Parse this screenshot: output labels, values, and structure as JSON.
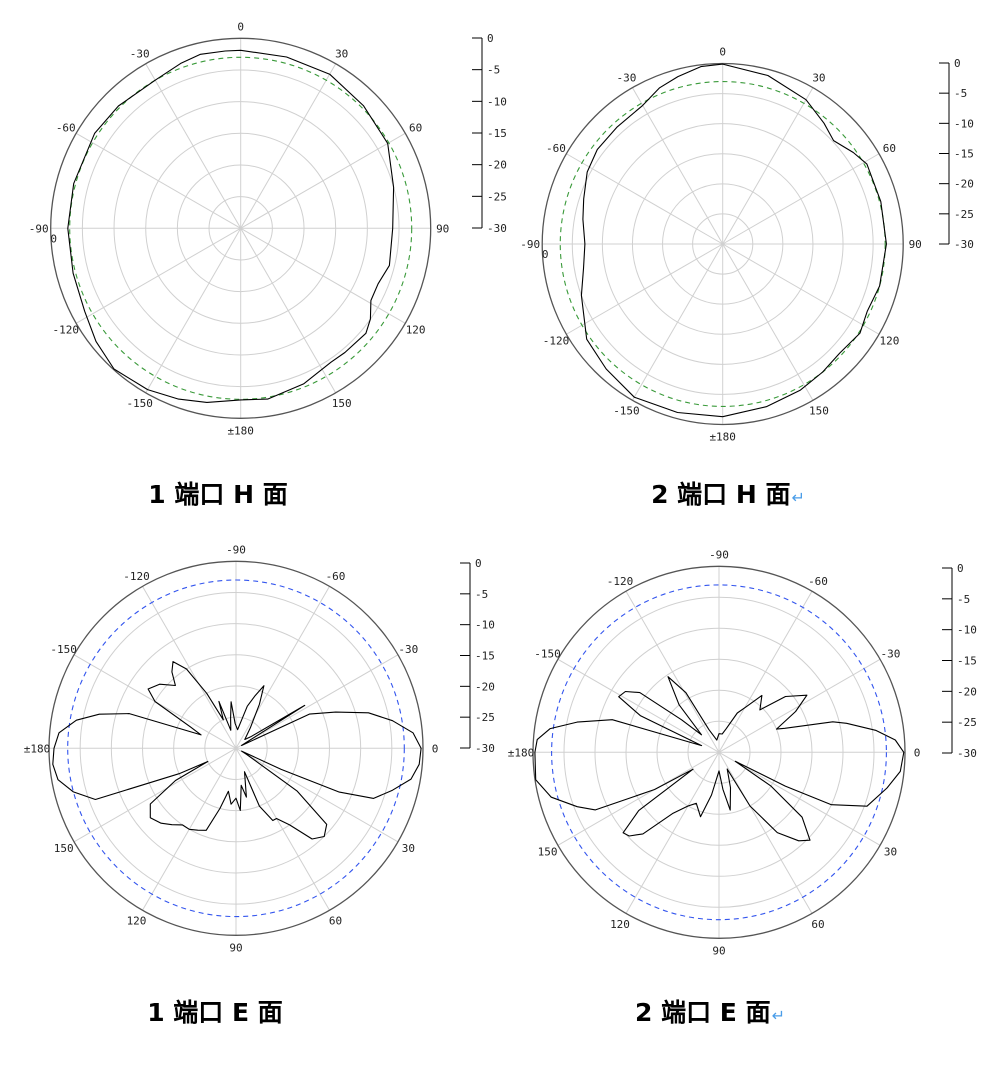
{
  "chart_data": [
    {
      "type": "polar-line",
      "title": "1 端口 H 面",
      "title_mark": "↵",
      "show_title_mark": false,
      "zero_direction": "top",
      "direction": "clockwise",
      "rlim": [
        -30,
        0
      ],
      "scale_ticks": [
        "0",
        "-5",
        "-10",
        "-15",
        "-20",
        "-25",
        "-30"
      ],
      "angle_ticks": [
        0,
        30,
        60,
        90,
        120,
        150,
        180,
        -150,
        -120,
        -90,
        -60,
        -30
      ],
      "angle_labels": [
        "0",
        "30",
        "60",
        "90",
        "120",
        "150",
        "±180",
        "-150",
        "-120",
        "-90",
        "-60",
        "-30"
      ],
      "extra_label": "0",
      "grid": true,
      "reference_circle": {
        "value": -3,
        "color": "#3a9a3a",
        "style": "dashed"
      },
      "line_color": "#000000",
      "points": [
        [
          0,
          -1.9
        ],
        [
          15,
          -2.0
        ],
        [
          30,
          -1.9
        ],
        [
          45,
          -2.6
        ],
        [
          60,
          -3.2
        ],
        [
          75,
          -5.0
        ],
        [
          90,
          -6.0
        ],
        [
          104,
          -5.8
        ],
        [
          112,
          -6.6
        ],
        [
          119,
          -6.5
        ],
        [
          125,
          -5.0
        ],
        [
          130,
          -4.2
        ],
        [
          140,
          -4.4
        ],
        [
          146,
          -4.5
        ],
        [
          158,
          -3.5
        ],
        [
          171,
          -2.7
        ],
        [
          180,
          -2.9
        ],
        [
          -169,
          -2.0
        ],
        [
          -160,
          -1.3
        ],
        [
          -150,
          -0.6
        ],
        [
          -138,
          -0.1
        ],
        [
          -128,
          -1.0
        ],
        [
          -118,
          -2.1
        ],
        [
          -105,
          -2.6
        ],
        [
          -90,
          -2.7
        ],
        [
          -75,
          -2.7
        ],
        [
          -57,
          -2.5
        ],
        [
          -45,
          -2.7
        ],
        [
          -30,
          -3.0
        ],
        [
          -20,
          -2.3
        ],
        [
          -13,
          -1.8
        ],
        [
          -5,
          -1.9
        ]
      ]
    },
    {
      "type": "polar-line",
      "title": "2 端口 H 面",
      "title_mark": "↵",
      "show_title_mark": true,
      "zero_direction": "top",
      "direction": "clockwise",
      "rlim": [
        -30,
        0
      ],
      "scale_ticks": [
        "0",
        "-5",
        "-10",
        "-15",
        "-20",
        "-25",
        "-30"
      ],
      "angle_ticks": [
        0,
        30,
        60,
        90,
        120,
        150,
        180,
        -150,
        -120,
        -90,
        -60,
        -30
      ],
      "angle_labels": [
        "0",
        "30",
        "60",
        "90",
        "120",
        "150",
        "±180",
        "-150",
        "-120",
        "-90",
        "-60",
        "-30"
      ],
      "extra_label": "0",
      "grid": true,
      "reference_circle": {
        "value": -3,
        "color": "#3a9a3a",
        "style": "dashed"
      },
      "line_color": "#000000",
      "points": [
        [
          0,
          -0.1
        ],
        [
          15,
          -1.0
        ],
        [
          30,
          -2.3
        ],
        [
          40,
          -3.8
        ],
        [
          47,
          -4.8
        ],
        [
          55,
          -3.5
        ],
        [
          61,
          -2.6
        ],
        [
          75,
          -2.8
        ],
        [
          90,
          -2.8
        ],
        [
          105,
          -3.0
        ],
        [
          115,
          -3.5
        ],
        [
          123,
          -2.8
        ],
        [
          133,
          -3.4
        ],
        [
          142,
          -3.0
        ],
        [
          152,
          -2.5
        ],
        [
          165,
          -2.0
        ],
        [
          180,
          -1.3
        ],
        [
          -165,
          -1.0
        ],
        [
          -150,
          -0.6
        ],
        [
          -137,
          -1.6
        ],
        [
          -125,
          -2.4
        ],
        [
          -110,
          -5.0
        ],
        [
          -100,
          -6.5
        ],
        [
          -90,
          -7.1
        ],
        [
          -80,
          -6.4
        ],
        [
          -72,
          -5.7
        ],
        [
          -62,
          -4.5
        ],
        [
          -53,
          -3.9
        ],
        [
          -42,
          -3.8
        ],
        [
          -30,
          -3.4
        ],
        [
          -22,
          -2.0
        ],
        [
          -15,
          -1.2
        ],
        [
          -7,
          -0.3
        ]
      ]
    },
    {
      "type": "polar-line",
      "title": "1 端口 E 面",
      "title_mark": "↵",
      "show_title_mark": false,
      "zero_direction": "right",
      "direction": "clockwise",
      "rlim": [
        -30,
        0
      ],
      "scale_ticks": [
        "0",
        "-5",
        "-10",
        "-15",
        "-20",
        "-25",
        "-30"
      ],
      "angle_ticks": [
        0,
        30,
        60,
        90,
        120,
        150,
        180,
        -150,
        -120,
        -90,
        -60,
        -30
      ],
      "angle_labels": [
        "0",
        "30",
        "60",
        "90",
        "120",
        "150",
        "±180",
        "-150",
        "-120",
        "-90",
        "-60",
        "-30"
      ],
      "extra_label": "",
      "grid": true,
      "reference_circle": {
        "value": -3,
        "color": "#3355ee",
        "style": "dashed"
      },
      "line_color": "#000000",
      "points": [
        [
          -30,
          -28
        ],
        [
          -27,
          -29
        ],
        [
          -25,
          -17
        ],
        [
          -20,
          -13
        ],
        [
          -15,
          -8
        ],
        [
          -10,
          -4.5
        ],
        [
          -5,
          -1.5
        ],
        [
          0,
          -0.3
        ],
        [
          5,
          -0.5
        ],
        [
          10,
          -1.5
        ],
        [
          15,
          -4
        ],
        [
          20,
          -6.5
        ],
        [
          23,
          -12
        ],
        [
          25,
          -22
        ],
        [
          27,
          -29
        ],
        [
          30,
          -28
        ],
        [
          35,
          -18
        ],
        [
          40,
          -11
        ],
        [
          45,
          -10
        ],
        [
          50,
          -11
        ],
        [
          55,
          -15
        ],
        [
          60,
          -17
        ],
        [
          63,
          -17
        ],
        [
          68,
          -20
        ],
        [
          70,
          -26
        ],
        [
          78,
          -22
        ],
        [
          82,
          -24
        ],
        [
          86,
          -20
        ],
        [
          90,
          -22
        ],
        [
          95,
          -21
        ],
        [
          100,
          -23
        ],
        [
          105,
          -20
        ],
        [
          110,
          -16
        ],
        [
          115,
          -15.5
        ],
        [
          120,
          -15
        ],
        [
          125,
          -15
        ],
        [
          130,
          -14
        ],
        [
          135,
          -13
        ],
        [
          141,
          -12.3
        ],
        [
          147,
          -13.6
        ],
        [
          152,
          -19
        ],
        [
          155,
          -25
        ],
        [
          156,
          -20
        ],
        [
          160,
          -6
        ],
        [
          165,
          -3
        ],
        [
          170,
          -1
        ],
        [
          175,
          -0.5
        ],
        [
          180,
          -0.8
        ],
        [
          -175,
          -1.5
        ],
        [
          -170,
          -4
        ],
        [
          -166,
          -7.4
        ],
        [
          -162,
          -12
        ],
        [
          -159,
          -24
        ],
        [
          -155,
          -22
        ],
        [
          -150,
          -15
        ],
        [
          -146,
          -13
        ],
        [
          -140,
          -14
        ],
        [
          -134,
          -16
        ],
        [
          -130,
          -14
        ],
        [
          -126,
          -12.8
        ],
        [
          -122,
          -15
        ],
        [
          -118,
          -20
        ],
        [
          -114,
          -25
        ],
        [
          -110,
          -22
        ],
        [
          -106,
          -27
        ],
        [
          -100,
          -25
        ],
        [
          -96,
          -22.5
        ],
        [
          -92,
          -26
        ],
        [
          -85,
          -27
        ],
        [
          -75,
          -23
        ],
        [
          -70,
          -21
        ],
        [
          -66,
          -19
        ],
        [
          -62,
          -22
        ],
        [
          -55,
          -26
        ],
        [
          -45,
          -28
        ],
        [
          -38,
          -27
        ],
        [
          -32,
          -17
        ]
      ]
    },
    {
      "type": "polar-line",
      "title": "2 端口 E 面",
      "title_mark": "↵",
      "show_title_mark": true,
      "zero_direction": "right",
      "direction": "clockwise",
      "rlim": [
        -30,
        0
      ],
      "scale_ticks": [
        "0",
        "-5",
        "-10",
        "-15",
        "-20",
        "-25",
        "-30"
      ],
      "angle_ticks": [
        0,
        30,
        60,
        90,
        120,
        150,
        180,
        -150,
        -120,
        -90,
        -60,
        -30
      ],
      "angle_labels": [
        "0",
        "30",
        "60",
        "90",
        "120",
        "150",
        "±180",
        "-150",
        "-120",
        "-90",
        "-60",
        "-30"
      ],
      "extra_label": "",
      "grid": true,
      "reference_circle": {
        "value": -3,
        "color": "#3355ee",
        "style": "dashed"
      },
      "line_color": "#000000",
      "points": [
        [
          0,
          -0.2
        ],
        [
          6,
          -0.6
        ],
        [
          12,
          -2.3
        ],
        [
          20,
          -4.6
        ],
        [
          25,
          -10
        ],
        [
          27,
          -18
        ],
        [
          29,
          -27
        ],
        [
          33,
          -20
        ],
        [
          38,
          -13
        ],
        [
          44,
          -9.6
        ],
        [
          48,
          -10.8
        ],
        [
          54,
          -14
        ],
        [
          60,
          -20
        ],
        [
          64,
          -27
        ],
        [
          72,
          -24
        ],
        [
          79,
          -20.5
        ],
        [
          84,
          -24
        ],
        [
          90,
          -27
        ],
        [
          100,
          -23
        ],
        [
          106,
          -19.2
        ],
        [
          114,
          -21
        ],
        [
          120,
          -20
        ],
        [
          127,
          -17.7
        ],
        [
          133,
          -12
        ],
        [
          137,
          -10.2
        ],
        [
          140,
          -9.8
        ],
        [
          144,
          -14
        ],
        [
          147,
          -25
        ],
        [
          150,
          -18
        ],
        [
          155,
          -8
        ],
        [
          159,
          -5.5
        ],
        [
          165,
          -2
        ],
        [
          171.5,
          -0.1
        ],
        [
          180,
          -0.3
        ],
        [
          -176,
          -0.6
        ],
        [
          -172,
          -2.5
        ],
        [
          -168,
          -6.6
        ],
        [
          -163,
          -12
        ],
        [
          -159,
          -27
        ],
        [
          -155,
          -16
        ],
        [
          -151,
          -11.5
        ],
        [
          -147,
          -12
        ],
        [
          -143,
          -14
        ],
        [
          -139,
          -22
        ],
        [
          -135,
          -26
        ],
        [
          -130,
          -20
        ],
        [
          -124,
          -15.3
        ],
        [
          -119,
          -19
        ],
        [
          -114,
          -26
        ],
        [
          -100,
          -28
        ],
        [
          -90,
          -27
        ],
        [
          -80,
          -27
        ],
        [
          -73,
          -26
        ],
        [
          -65,
          -23
        ],
        [
          -59,
          -21.4
        ],
        [
          -53,
          -18.5
        ],
        [
          -46,
          -20.5
        ],
        [
          -40,
          -16
        ],
        [
          -33,
          -13.1
        ],
        [
          -28,
          -16
        ],
        [
          -22,
          -20
        ],
        [
          -20,
          -18.7
        ],
        [
          -15,
          -11
        ],
        [
          -12.8,
          -8.9
        ],
        [
          -8,
          -4.5
        ],
        [
          -4,
          -1.5
        ]
      ]
    }
  ]
}
